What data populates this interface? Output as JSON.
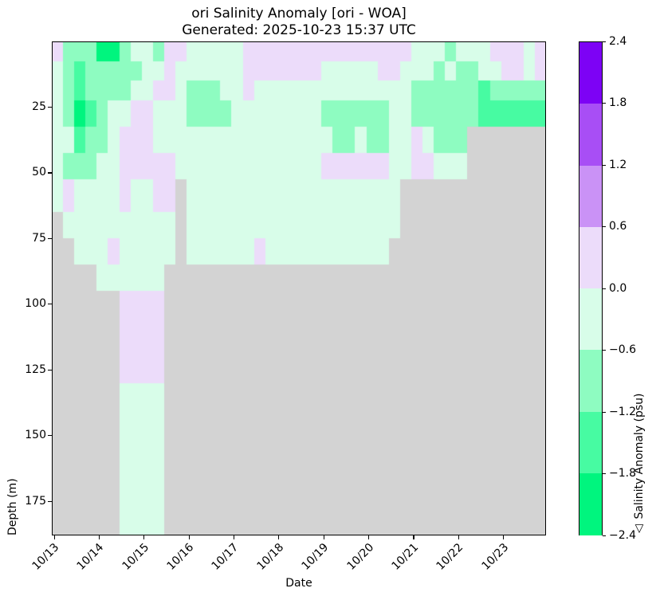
{
  "figure": {
    "title_line1": "ori Salinity Anomaly [ori - WOA]",
    "title_line2": "Generated: 2025-10-23 15:37 UTC",
    "background_color": "#ffffff",
    "no_data_color": "#d3d3d3"
  },
  "axes": {
    "x": {
      "label": "Date",
      "tick_labels": [
        "10/13",
        "10/14",
        "10/15",
        "10/16",
        "10/17",
        "10/18",
        "10/19",
        "10/20",
        "10/21",
        "10/22",
        "10/23"
      ]
    },
    "y": {
      "label": "Depth (m)",
      "tick_values": [
        25,
        50,
        75,
        100,
        125,
        150,
        175
      ],
      "tick_labels": [
        "25",
        "50",
        "75",
        "100",
        "125",
        "150",
        "175"
      ],
      "range_m": [
        0,
        188
      ]
    }
  },
  "colorbar": {
    "label": "△ Salinity Anomaly (psu)",
    "vmin": -2.4,
    "vmax": 2.4,
    "tick_labels": [
      "2.4",
      "1.8",
      "1.2",
      "0.6",
      "0.0",
      "−0.6",
      "−1.2",
      "−1.8",
      "−2.4"
    ],
    "band_colors_top_to_bottom": [
      "#7d02f5",
      "#a84ef5",
      "#ca92f6",
      "#ecdcfa",
      "#d8fde9",
      "#8efcc1",
      "#47fba2",
      "#00f57e"
    ]
  },
  "chart_data": {
    "type": "heatmap",
    "title": "ori Salinity Anomaly [ori - WOA]",
    "xlabel": "Date",
    "ylabel": "Depth (m)",
    "x_start": "10/13 00:00",
    "x_step_hours": 6,
    "n_cols": 44,
    "x_tick_labels": [
      "10/13",
      "10/14",
      "10/15",
      "10/16",
      "10/17",
      "10/18",
      "10/19",
      "10/20",
      "10/21",
      "10/22",
      "10/23"
    ],
    "depth_edges_m": [
      0,
      7.5,
      15,
      22.5,
      32.5,
      42.5,
      52.5,
      65,
      75,
      85,
      95,
      112.5,
      130,
      188
    ],
    "value_bins_psu": {
      "d": "-2.4 to -1.8",
      "c": "-1.8 to -1.2",
      "b": "-1.2 to -0.6",
      "a": "-0.6 to 0.0",
      "p": "0.0 to 0.6",
      "x": "no data"
    },
    "value_colors": {
      "d": "#00f57e",
      "c": "#47fba2",
      "b": "#8efcc1",
      "a": "#d8fde9",
      "p": "#ecdcfa",
      "x": "#d3d3d3"
    },
    "grid_rows": [
      "pbbbddbaabppaaaaapppppppppppppppaaabaaapppap",
      "abcbbbbbaapaaaaaapppppppaaaaappaaababbaappap",
      "abcbbbbaappabbbaapaaaaaaaaaaaaaabbbbbbcbbbbb",
      "abdcbaappaaabbbbaaaaaaaabbbbbbaabbbbbbcccccc",
      "aacbbapppaaaaaaaaaaaaaaaabbabbaapabbbxxxxxxx",
      "abbbaapppppaaaaaaaaaaaaappppppaappaaaxxxxxxx",
      "apaaaapaappxaaaaaaaaaaaaaaaaaaaxxxxxxxxxxxxx",
      "xaaaaaaaaaaxaaaaaaaaaaaaaaaaaaaxxxxxxxxxxxxx",
      "xxaaapaaaaaxaaaaaapaaaaaaaaaaaxxxxxxxxxxxxxx",
      "xxxxaaaaaaxxxxxxxxxxxxxxxxxxxxxxxxxxxxxxxxxx",
      "xxxxxxppppxxxxxxxxxxxxxxxxxxxxxxxxxxxxxxxxxx",
      "xxxxxxppppxxxxxxxxxxxxxxxxxxxxxxxxxxxxxxxxxx",
      "xxxxxxaaaaxxxxxxxxxxxxxxxxxxxxxxxxxxxxxxxxxx"
    ],
    "legend_position": "right-colorbar",
    "grid_lines": false
  }
}
